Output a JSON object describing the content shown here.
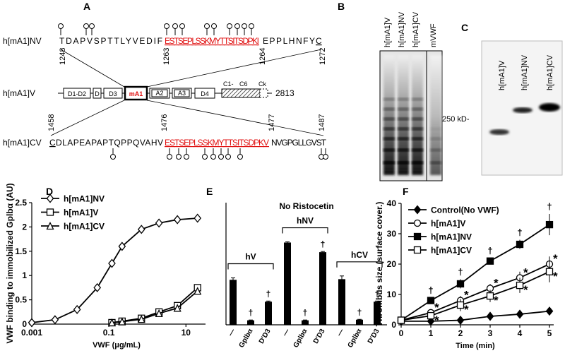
{
  "panel_a": {
    "label": "A",
    "nv": {
      "name": "h[mA1]NV",
      "seq_start": "TDAPVSPTTLYVEDIF",
      "seq_insert": "ESTSEPLSSKMYTTSITSDPKI",
      "seq_end": "EPPLHNFY",
      "seq_c": "C",
      "positions": [
        "1248",
        "1263",
        "1264",
        "1272"
      ]
    },
    "v": {
      "name": "h[mA1]V",
      "domains": [
        "D1-D2",
        "D",
        "D3",
        "mA1",
        "A2",
        "A3",
        "D4",
        "C1-",
        "C6",
        "Ck"
      ],
      "length": "2813"
    },
    "cv": {
      "name": "h[mA1]CV",
      "seq_c": "C",
      "seq_start": "DLAPEAPAPTQPPQVAHV",
      "seq_insert": "ESTSEPLSSKMYTTSITSDPKV",
      "seq_end": "NVGPGLLGVST",
      "positions": [
        "1458",
        "1476",
        "1477",
        "1487"
      ]
    }
  },
  "panel_b": {
    "label": "B",
    "lanes": [
      "h[mA1]V",
      "h[mA1]NV",
      "h[mA1]CV",
      "mVWF"
    ],
    "marker": "250 kD-"
  },
  "panel_c": {
    "label": "C",
    "lanes": [
      "h[mA1]V",
      "h[mA1]NV",
      "h[mA1]CV"
    ]
  },
  "chart_data": [
    {
      "type": "line",
      "panel": "D",
      "xlabel": "VWF (μg/mL)",
      "ylabel": "VWF binding to immobilized Gplbα (AU)",
      "log_x": true,
      "x": [
        0.001,
        0.004,
        0.015,
        0.05,
        0.12,
        0.22,
        0.7,
        2,
        6,
        20
      ],
      "xlim": [
        0.001,
        25
      ],
      "xticks": [
        0.001,
        0.1,
        10
      ],
      "ylim": [
        0,
        2.5
      ],
      "yticks": [
        0,
        0.5,
        1,
        1.5,
        2,
        2.5
      ],
      "series": [
        {
          "name": "h[mA1]NV",
          "color": "#000000",
          "marker": "diamond",
          "filled": false,
          "values": [
            0.03,
            0.09,
            0.3,
            0.75,
            1.25,
            1.6,
            1.95,
            2.08,
            2.15,
            2.18
          ]
        },
        {
          "name": "h[mA1]V",
          "color": "#000000",
          "marker": "square",
          "filled": false,
          "values": [
            null,
            null,
            null,
            null,
            0.03,
            0.06,
            0.12,
            0.25,
            0.38,
            0.75
          ]
        },
        {
          "name": "h[mA1]CV",
          "color": "#000000",
          "marker": "triangle",
          "filled": false,
          "values": [
            null,
            null,
            null,
            null,
            0.03,
            0.05,
            0.1,
            0.22,
            0.33,
            0.68
          ]
        }
      ]
    },
    {
      "type": "bar",
      "panel": "E",
      "title": "No Ristocetin",
      "color": "#000000",
      "categories": [
        "—",
        "Gplbα",
        "D'D3",
        "—",
        "Gplbα",
        "D'D3",
        "—",
        "Gplbα",
        "D'D3"
      ],
      "values": [
        0.7,
        0.07,
        0.36,
        1.28,
        0.07,
        1.13,
        0.71,
        0.08,
        0.36
      ],
      "errors": [
        0.03,
        0.005,
        0.01,
        0.01,
        0.005,
        0.01,
        0.05,
        0.005,
        0.01
      ],
      "ylim": [
        0,
        1.9
      ],
      "groups": [
        "hV",
        "hNV",
        "hCV"
      ],
      "significance_mark": "†"
    },
    {
      "type": "line",
      "panel": "F",
      "xlabel": "Time (min)",
      "ylabel": "Thrombus size (surface cover.)",
      "x": [
        0,
        1,
        2,
        3,
        4,
        5
      ],
      "xlim": [
        0,
        5
      ],
      "xticks": [
        0,
        1,
        2,
        3,
        4,
        5
      ],
      "ylim": [
        0,
        40
      ],
      "yticks": [
        0,
        10,
        20,
        30,
        40
      ],
      "annotations": [
        "*",
        "†"
      ],
      "series": [
        {
          "name": "Control(No VWF)",
          "color": "#000000",
          "marker": "diamond",
          "filled": true,
          "values": [
            1.2,
            1.2,
            1.5,
            2.8,
            3.5,
            4.5
          ],
          "errors": [
            0.3,
            0.2,
            0.3,
            0.4,
            0.4,
            0.5
          ]
        },
        {
          "name": "h[mA1]V",
          "color": "#000000",
          "marker": "circle",
          "filled": false,
          "values": [
            1.5,
            4,
            8,
            12,
            15.5,
            20
          ],
          "errors": [
            0.5,
            1,
            1.5,
            1.5,
            2,
            2.5
          ]
        },
        {
          "name": "h[mA1]NV",
          "color": "#000000",
          "marker": "square",
          "filled": true,
          "values": [
            1.5,
            8,
            13.5,
            21,
            26.5,
            33
          ],
          "errors": [
            0.5,
            1,
            1.5,
            1,
            1.5,
            3.5
          ]
        },
        {
          "name": "h[mA1]CV",
          "color": "#000000",
          "marker": "square",
          "filled": false,
          "values": [
            1.5,
            3,
            6.5,
            9.5,
            13,
            17.5
          ],
          "errors": [
            0.5,
            1,
            2,
            2,
            2.5,
            3.5
          ]
        }
      ]
    }
  ]
}
